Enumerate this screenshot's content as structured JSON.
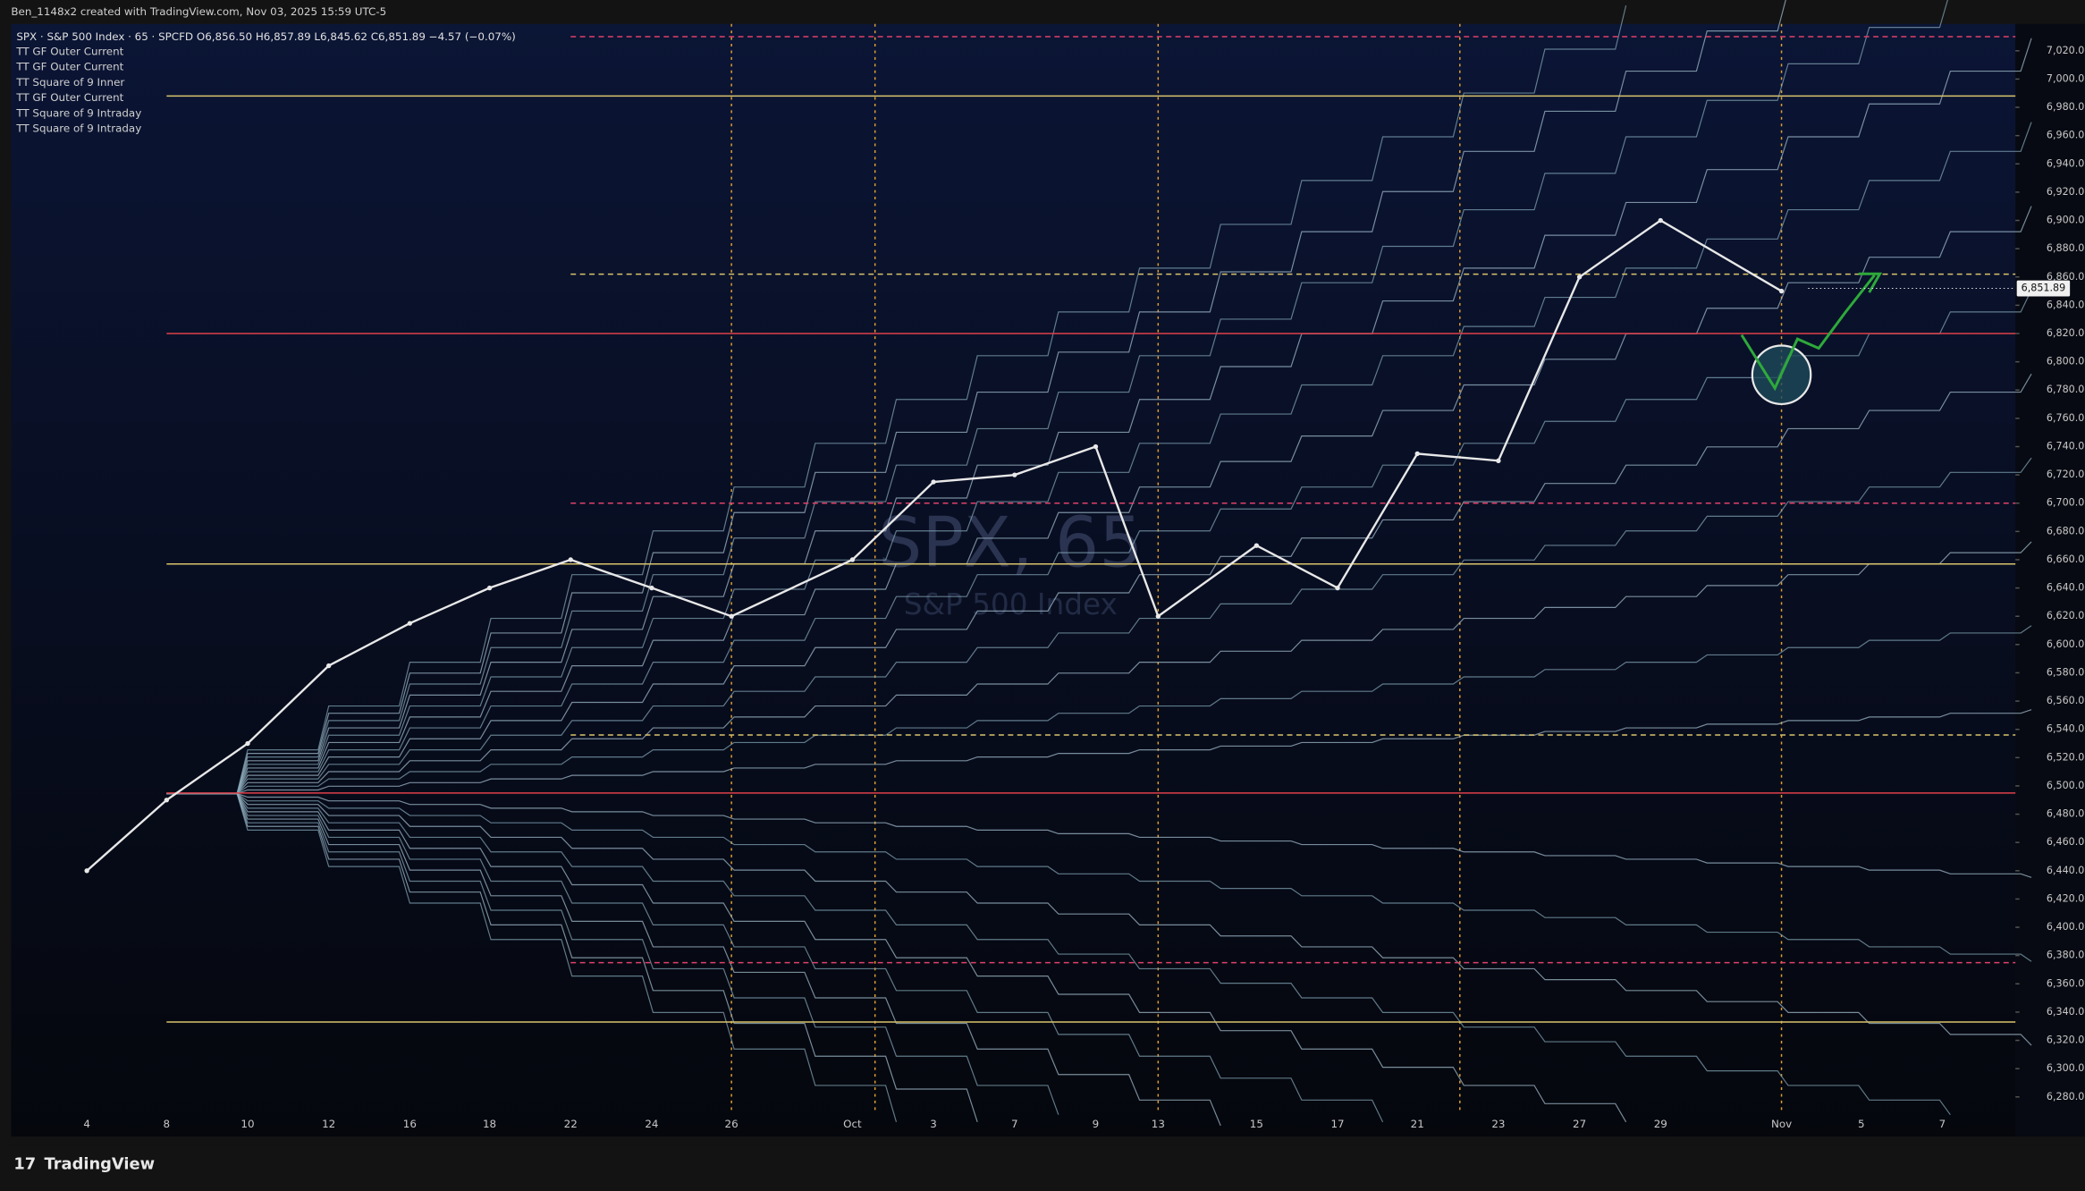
{
  "header": {
    "credit": "Ben_1148x2 created with TradingView.com, Nov 03, 2025 15:59 UTC-5",
    "brand": "TradingView"
  },
  "chart_data": {
    "type": "line",
    "legend_text": "SPX · S&P 500 Index · 65 · SPCFD  O6,856.50  H6,857.89  L6,845.62  C6,851.89  −4.57 (−0.07%)",
    "indicators": [
      "TT GF Outer Current",
      "TT GF Outer Current",
      "TT Square of 9 Inner",
      "TT GF Outer Current",
      "TT Square of 9 Intraday",
      "TT Square of 9 Intraday"
    ],
    "watermark": "SPX, 65",
    "watermark_sub": "S&P 500 Index",
    "categories": [
      "4",
      "8",
      "10",
      "12",
      "16",
      "18",
      "22",
      "24",
      "26",
      "Oct",
      "3",
      "7",
      "9",
      "13",
      "15",
      "17",
      "21",
      "23",
      "27",
      "29",
      "Nov",
      "5",
      "7"
    ],
    "series": [
      {
        "name": "SPX",
        "color": "#e8e8e8",
        "values": [
          6440,
          6490,
          6530,
          6585,
          6615,
          6640,
          6660,
          6640,
          6620,
          6660,
          6715,
          6720,
          6740,
          6620,
          6670,
          6640,
          6735,
          6730,
          6860,
          6900,
          6850,
          null,
          null
        ]
      }
    ],
    "last_price": {
      "value": 6851.89,
      "label": "6,851.89"
    },
    "levels": [
      {
        "value": 6988,
        "color": "#d9c46b",
        "style": "solid"
      },
      {
        "value": 6657,
        "color": "#d9c46b",
        "style": "solid"
      },
      {
        "value": 6333,
        "color": "#d9c46b",
        "style": "solid"
      },
      {
        "value": 6820,
        "color": "#e0404a",
        "style": "solid"
      },
      {
        "value": 6495,
        "color": "#e0404a",
        "style": "solid"
      },
      {
        "value": 7030,
        "color": "#e0406a",
        "style": "dashed"
      },
      {
        "value": 6700,
        "color": "#e0406a",
        "style": "dashed"
      },
      {
        "value": 6375,
        "color": "#e0406a",
        "style": "dashed"
      },
      {
        "value": 6862,
        "color": "#d9c46b",
        "style": "dashed"
      },
      {
        "value": 6536,
        "color": "#d9c46b",
        "style": "dashed"
      }
    ],
    "ylim": [
      6252,
      7039
    ],
    "yticks": [
      {
        "value": 6280,
        "label": "6,280.00"
      },
      {
        "value": 6300,
        "label": "6,300.00"
      },
      {
        "value": 6320,
        "label": "6,320.00"
      },
      {
        "value": 6340,
        "label": "6,340.00"
      },
      {
        "value": 6360,
        "label": "6,360.00"
      },
      {
        "value": 6380,
        "label": "6,380.00"
      },
      {
        "value": 6400,
        "label": "6,400.00"
      },
      {
        "value": 6420,
        "label": "6,420.00"
      },
      {
        "value": 6440,
        "label": "6,440.00"
      },
      {
        "value": 6460,
        "label": "6,460.00"
      },
      {
        "value": 6480,
        "label": "6,480.00"
      },
      {
        "value": 6500,
        "label": "6,500.00"
      },
      {
        "value": 6520,
        "label": "6,520.00"
      },
      {
        "value": 6540,
        "label": "6,540.00"
      },
      {
        "value": 6560,
        "label": "6,560.00"
      },
      {
        "value": 6580,
        "label": "6,580.00"
      },
      {
        "value": 6600,
        "label": "6,600.00"
      },
      {
        "value": 6620,
        "label": "6,620.00"
      },
      {
        "value": 6640,
        "label": "6,640.00"
      },
      {
        "value": 6660,
        "label": "6,660.00"
      },
      {
        "value": 6680,
        "label": "6,680.00"
      },
      {
        "value": 6700,
        "label": "6,700.00"
      },
      {
        "value": 6720,
        "label": "6,720.00"
      },
      {
        "value": 6740,
        "label": "6,740.00"
      },
      {
        "value": 6760,
        "label": "6,760.00"
      },
      {
        "value": 6780,
        "label": "6,780.00"
      },
      {
        "value": 6800,
        "label": "6,800.00"
      },
      {
        "value": 6820,
        "label": "6,820.00"
      },
      {
        "value": 6840,
        "label": "6,840.00"
      },
      {
        "value": 6860,
        "label": "6,860.00"
      },
      {
        "value": 6880,
        "label": "6,880.00"
      },
      {
        "value": 6900,
        "label": "6,900.00"
      },
      {
        "value": 6920,
        "label": "6,920.00"
      },
      {
        "value": 6940,
        "label": "6,940.00"
      },
      {
        "value": 6960,
        "label": "6,960.00"
      },
      {
        "value": 6980,
        "label": "6,980.00"
      },
      {
        "value": 7000,
        "label": "7,000.00"
      },
      {
        "value": 7020,
        "label": "7,020.00"
      }
    ],
    "grid": false
  }
}
